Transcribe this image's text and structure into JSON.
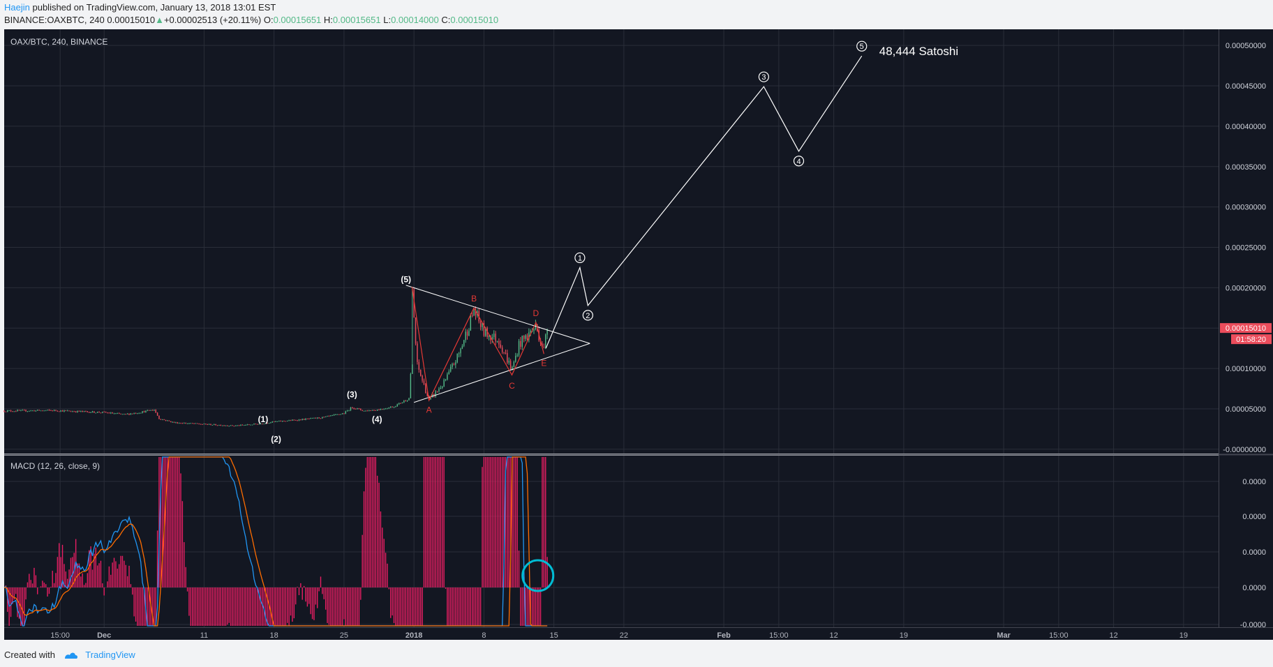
{
  "header": {
    "author": "Haejin",
    "published_text": "published on TradingView.com, January 13, 2018 13:01 EST",
    "symbol": "BINANCE:OAXBTC, 240",
    "last": "0.00015010",
    "change_arrow": "▲",
    "change": "+0.00002513 (+20.11%)",
    "o_label": "O:",
    "o_value": "0.00015651",
    "h_label": "H:",
    "h_value": "0.00015651",
    "l_label": "L:",
    "l_value": "0.00014000",
    "c_label": "C:",
    "c_value": "0.00015010"
  },
  "footer": {
    "created_with": "Created with",
    "brand": "TradingView"
  },
  "colors": {
    "background": "#131722",
    "grid": "#2a2e39",
    "up": "#53b987",
    "down": "#eb4d5c",
    "macd_line": "#2196f3",
    "signal_line": "#ff6d00",
    "histogram": "#e91e63",
    "elliott": "#ffffff",
    "abcde": "#e53935",
    "highlight_circle": "#00bcd4",
    "price_tag": "#eb4d5c"
  },
  "chart_data": [
    {
      "type": "candlestick",
      "title": "OAX/BTC, 240, BINANCE",
      "y_tick_labels": [
        "0.00050000",
        "0.00045000",
        "0.00040000",
        "0.00035000",
        "0.00030000",
        "0.00025000",
        "0.00020000",
        "0.00015000",
        "0.00010000",
        "0.00005000",
        "-0.00000000"
      ],
      "y_ticks": [
        0.0005,
        0.00045,
        0.0004,
        0.00035,
        0.0003,
        0.00025,
        0.0002,
        0.00015,
        0.0001,
        5e-05,
        0
      ],
      "ylim": [
        -5.3e-06,
        0.00052
      ],
      "x_tick_labels": [
        "15:00",
        "Dec",
        "11",
        "18",
        "25",
        "2018",
        "8",
        "15",
        "22",
        "Feb",
        "15:00",
        "12",
        "19",
        "Mar",
        "15:00",
        "12",
        "19"
      ],
      "x_tick_days": [
        -35.4,
        -31,
        -21,
        -14,
        -7,
        0,
        7,
        14,
        21,
        31,
        36.5,
        42,
        49,
        59,
        64.5,
        70,
        77
      ],
      "xlim": [
        -41,
        80.5
      ],
      "last_price_label": "0.00015010",
      "countdown_label": "01:58:20",
      "elliott_labels": [
        {
          "text": "(1)",
          "day": -15.1,
          "price": 2.65e-05
        },
        {
          "text": "(2)",
          "day": -13.8,
          "price": 2.43e-05
        },
        {
          "text": "(3)",
          "day": -6.2,
          "price": 5.75e-05
        },
        {
          "text": "(4)",
          "day": -3.7,
          "price": 4.9e-05
        },
        {
          "text": "(5)",
          "day": -0.8,
          "price": 0.0002
        }
      ],
      "triangle_labels": [
        {
          "text": "A",
          "day": 1.5,
          "price": 5.8e-05
        },
        {
          "text": "B",
          "day": 6.0,
          "price": 0.000176
        },
        {
          "text": "C",
          "day": 9.8,
          "price": 8.8e-05
        },
        {
          "text": "D",
          "day": 12.2,
          "price": 0.000158
        },
        {
          "text": "E",
          "day": 13.0,
          "price": 0.000116
        }
      ],
      "projection_points": [
        {
          "label": "1",
          "day": 16.6,
          "price": 0.000225
        },
        {
          "label": "2",
          "day": 17.4,
          "price": 0.000178
        },
        {
          "label": "3",
          "day": 35.0,
          "price": 0.000449
        },
        {
          "label": "4",
          "day": 38.5,
          "price": 0.000369
        },
        {
          "label": "5",
          "day": 44.8,
          "price": 0.000487
        }
      ],
      "target_annotation": "48,444 Satoshi"
    },
    {
      "type": "line",
      "title": "MACD (12, 26, close, 9)",
      "y_tick_labels": [
        "0.0000",
        "0.0000",
        "0.0000",
        "0.0000",
        "-0.0000"
      ],
      "series": [
        {
          "name": "MACD",
          "role": "macd"
        },
        {
          "name": "Signal",
          "role": "signal"
        },
        {
          "name": "Histogram",
          "role": "histogram"
        }
      ]
    }
  ]
}
